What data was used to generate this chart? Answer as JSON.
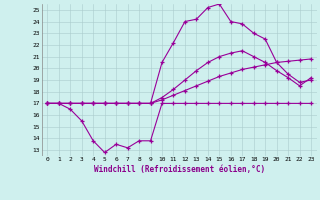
{
  "xlabel": "Windchill (Refroidissement éolien,°C)",
  "background_color": "#cff0ee",
  "line_color": "#990099",
  "xlim": [
    -0.5,
    23.5
  ],
  "ylim": [
    12.5,
    25.5
  ],
  "yticks": [
    13,
    14,
    15,
    16,
    17,
    18,
    19,
    20,
    21,
    22,
    23,
    24,
    25
  ],
  "xticks": [
    0,
    1,
    2,
    3,
    4,
    5,
    6,
    7,
    8,
    9,
    10,
    11,
    12,
    13,
    14,
    15,
    16,
    17,
    18,
    19,
    20,
    21,
    22,
    23
  ],
  "series1_x": [
    0,
    1,
    2,
    3,
    4,
    5,
    6,
    7,
    8,
    9,
    10,
    11,
    12,
    13,
    14,
    15,
    16,
    17,
    18,
    19,
    20,
    21,
    22,
    23
  ],
  "series1_y": [
    17,
    17,
    16.5,
    15.5,
    13.8,
    12.8,
    13.5,
    13.2,
    13.8,
    13.8,
    17,
    17,
    17,
    17,
    17,
    17,
    17,
    17,
    17,
    17,
    17,
    17,
    17,
    17
  ],
  "series2_x": [
    0,
    1,
    2,
    3,
    4,
    5,
    6,
    7,
    8,
    9,
    10,
    11,
    12,
    13,
    14,
    15,
    16,
    17,
    18,
    19,
    20,
    21,
    22,
    23
  ],
  "series2_y": [
    17,
    17,
    17,
    17,
    17,
    17,
    17,
    17,
    17,
    17,
    17.3,
    17.7,
    18.1,
    18.5,
    18.9,
    19.3,
    19.6,
    19.9,
    20.1,
    20.3,
    20.5,
    20.6,
    20.7,
    20.8
  ],
  "series3_x": [
    0,
    1,
    2,
    3,
    4,
    5,
    6,
    7,
    8,
    9,
    10,
    11,
    12,
    13,
    14,
    15,
    16,
    17,
    18,
    19,
    20,
    21,
    22,
    23
  ],
  "series3_y": [
    17,
    17,
    17,
    17,
    17,
    17,
    17,
    17,
    17,
    17,
    17.5,
    18.2,
    19.0,
    19.8,
    20.5,
    21.0,
    21.3,
    21.5,
    21.0,
    20.5,
    19.8,
    19.2,
    18.5,
    19.2
  ],
  "series4_x": [
    0,
    1,
    2,
    3,
    4,
    5,
    6,
    7,
    8,
    9,
    10,
    11,
    12,
    13,
    14,
    15,
    16,
    17,
    18,
    19,
    20,
    21,
    22,
    23
  ],
  "series4_y": [
    17,
    17,
    17,
    17,
    17,
    17,
    17,
    17,
    17,
    17,
    20.5,
    22.2,
    24.0,
    24.2,
    25.2,
    25.5,
    24.0,
    23.8,
    23.0,
    22.5,
    20.5,
    19.5,
    18.8,
    19.0
  ]
}
